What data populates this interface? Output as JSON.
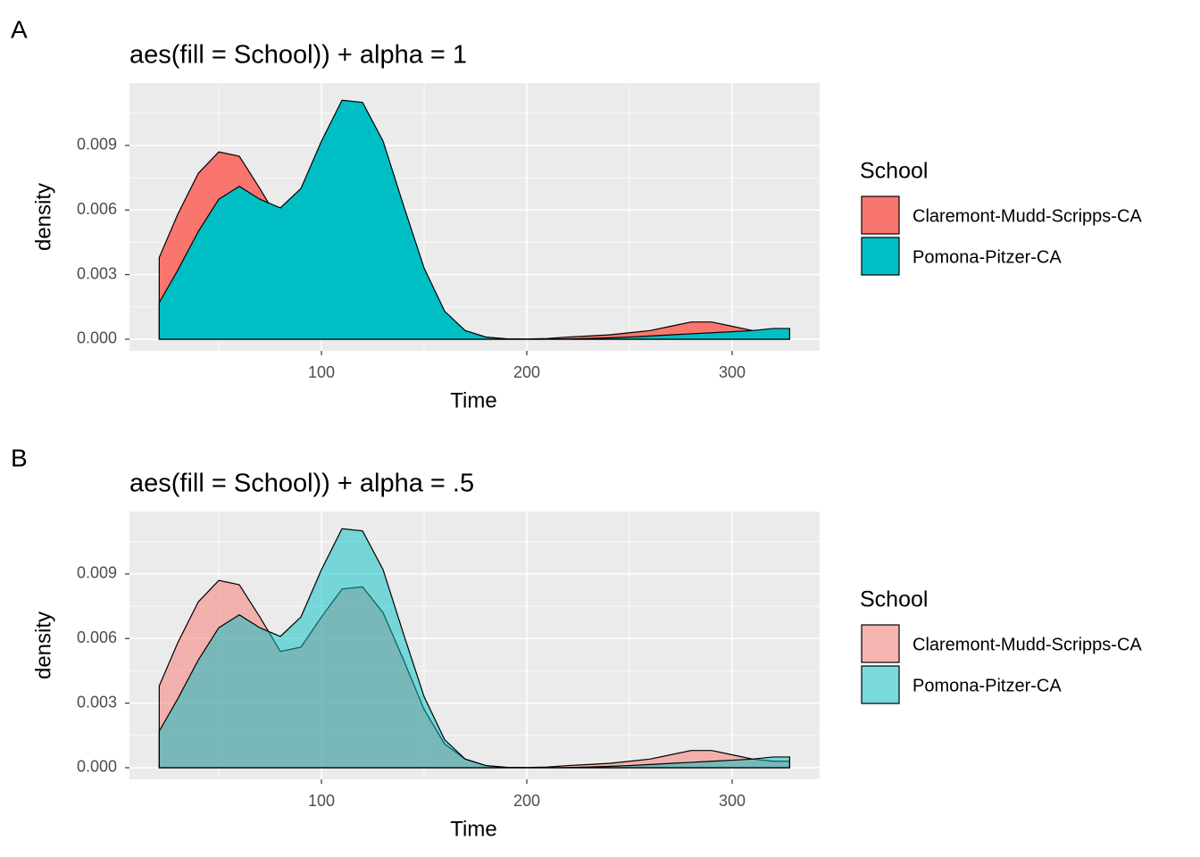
{
  "chart_data": [
    {
      "type": "area",
      "tag": "A",
      "title": "aes(fill = School)) + alpha = 1",
      "alpha": 1,
      "x_label": "Time",
      "y_label": "density",
      "legend_title": "School",
      "legend": "right",
      "grid": true,
      "xlim": [
        6.5,
        342.6
      ],
      "ylim": [
        -0.00054,
        0.0119
      ],
      "xticks": [
        100,
        200,
        300
      ],
      "yticks": [
        {
          "value": 0,
          "label": "0.000"
        },
        {
          "value": 0.003,
          "label": "0.003"
        },
        {
          "value": 0.006,
          "label": "0.006"
        },
        {
          "value": 0.009,
          "label": "0.009"
        }
      ],
      "x": [
        21,
        30,
        40,
        50,
        60,
        70,
        80,
        90,
        100,
        110,
        120,
        130,
        140,
        150,
        160,
        170,
        180,
        190,
        200,
        210,
        220,
        230,
        240,
        250,
        260,
        270,
        280,
        290,
        300,
        310,
        320,
        328
      ],
      "series": [
        {
          "name": "Claremont-Mudd-Scripps-CA",
          "color": "#f8766d",
          "values": [
            0.0038,
            0.0058,
            0.0077,
            0.0087,
            0.0085,
            0.007,
            0.0054,
            0.0056,
            0.007,
            0.0083,
            0.0084,
            0.0072,
            0.005,
            0.0027,
            0.0011,
            0.0004,
            0.0001,
            2e-05,
            1e-05,
            3e-05,
            0.0001,
            0.00015,
            0.0002,
            0.0003,
            0.0004,
            0.0006,
            0.0008,
            0.0008,
            0.0006,
            0.0004,
            0.0003,
            0.0003
          ]
        },
        {
          "name": "Pomona-Pitzer-CA",
          "color": "#00bfc4",
          "values": [
            0.0017,
            0.0032,
            0.005,
            0.0065,
            0.0071,
            0.0065,
            0.0061,
            0.007,
            0.0092,
            0.0111,
            0.011,
            0.0092,
            0.0062,
            0.0033,
            0.0013,
            0.0004,
            0.0001,
            1e-05,
            0,
            0,
            1e-05,
            3e-05,
            6e-05,
            0.0001,
            0.00015,
            0.0002,
            0.00025,
            0.0003,
            0.00035,
            0.0004,
            0.0005,
            0.0005
          ]
        }
      ]
    },
    {
      "type": "area",
      "tag": "B",
      "title": "aes(fill = School)) + alpha = .5",
      "alpha": 0.5,
      "x_label": "Time",
      "y_label": "density",
      "legend_title": "School",
      "legend": "right",
      "grid": true,
      "xlim": [
        6.5,
        342.6
      ],
      "ylim": [
        -0.00054,
        0.0119
      ],
      "xticks": [
        100,
        200,
        300
      ],
      "yticks": [
        {
          "value": 0,
          "label": "0.000"
        },
        {
          "value": 0.003,
          "label": "0.003"
        },
        {
          "value": 0.006,
          "label": "0.006"
        },
        {
          "value": 0.009,
          "label": "0.009"
        }
      ],
      "x": [
        21,
        30,
        40,
        50,
        60,
        70,
        80,
        90,
        100,
        110,
        120,
        130,
        140,
        150,
        160,
        170,
        180,
        190,
        200,
        210,
        220,
        230,
        240,
        250,
        260,
        270,
        280,
        290,
        300,
        310,
        320,
        328
      ],
      "series": [
        {
          "name": "Claremont-Mudd-Scripps-CA",
          "color": "#f8766d",
          "values": [
            0.0038,
            0.0058,
            0.0077,
            0.0087,
            0.0085,
            0.007,
            0.0054,
            0.0056,
            0.007,
            0.0083,
            0.0084,
            0.0072,
            0.005,
            0.0027,
            0.0011,
            0.0004,
            0.0001,
            2e-05,
            1e-05,
            3e-05,
            0.0001,
            0.00015,
            0.0002,
            0.0003,
            0.0004,
            0.0006,
            0.0008,
            0.0008,
            0.0006,
            0.0004,
            0.0003,
            0.0003
          ]
        },
        {
          "name": "Pomona-Pitzer-CA",
          "color": "#00bfc4",
          "values": [
            0.0017,
            0.0032,
            0.005,
            0.0065,
            0.0071,
            0.0065,
            0.0061,
            0.007,
            0.0092,
            0.0111,
            0.011,
            0.0092,
            0.0062,
            0.0033,
            0.0013,
            0.0004,
            0.0001,
            1e-05,
            0,
            0,
            1e-05,
            3e-05,
            6e-05,
            0.0001,
            0.00015,
            0.0002,
            0.00025,
            0.0003,
            0.00035,
            0.0004,
            0.0005,
            0.0005
          ]
        }
      ]
    }
  ]
}
